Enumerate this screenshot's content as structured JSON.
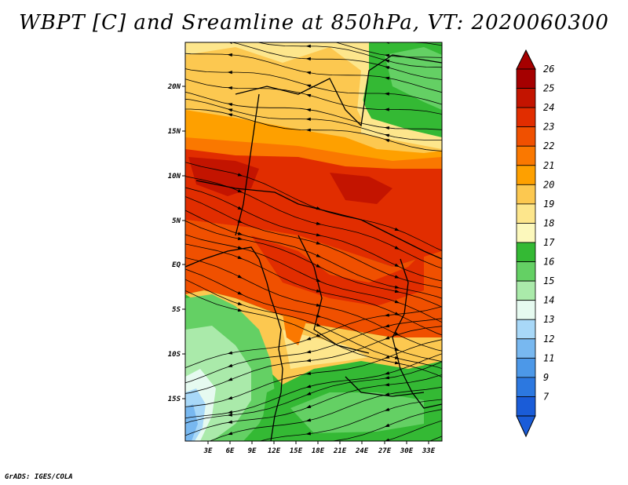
{
  "title": "WBPT [C] and Sreamline at 850hPa, VT: 2020060300",
  "credit": "GrADS: IGES/COLA",
  "map": {
    "lat_labels": [
      "20N",
      "15N",
      "10N",
      "5N",
      "EQ",
      "5S",
      "10S",
      "15S"
    ],
    "lon_labels": [
      "3E",
      "6E",
      "9E",
      "12E",
      "15E",
      "18E",
      "21E",
      "24E",
      "27E",
      "30E",
      "33E"
    ],
    "field": "wet-bulb potential temperature with streamlines",
    "level": "850hPa",
    "valid_time": "2020060300"
  },
  "colorbar": {
    "labels": [
      "26",
      "25",
      "24",
      "23",
      "22",
      "21",
      "20",
      "19",
      "18",
      "17",
      "16",
      "15",
      "14",
      "13",
      "12",
      "11",
      "9",
      "7"
    ],
    "colors": [
      "#a50000",
      "#c31400",
      "#e12d00",
      "#f05000",
      "#fa7800",
      "#fea000",
      "#fcc850",
      "#fde68c",
      "#fcf8bc",
      "#34b934",
      "#64d064",
      "#aaeaaa",
      "#e6faf0",
      "#a8d8f8",
      "#78b8f0",
      "#4c98e8",
      "#2c78e0",
      "#1a5cd8"
    ],
    "arrow_top_color": "#a50000",
    "arrow_bottom_color": "#1a5cd8"
  }
}
